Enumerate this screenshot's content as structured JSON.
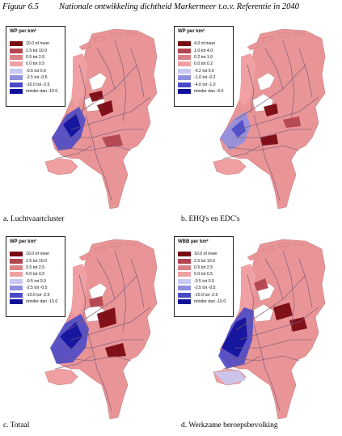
{
  "figure": {
    "number": "Figuur 6.5",
    "title": "Nationale ontwikkeling dichtheid Markermeer t.o.v. Referentie in 2040"
  },
  "colors": {
    "class1": "#7a0a12",
    "class2": "#b34550",
    "class3": "#d98185",
    "class4": "#f0a0a2",
    "class5": "#c8c8f2",
    "class6": "#8f8fe0",
    "class7": "#4a4ac8",
    "class8": "#0f0f9a",
    "land_base": "#e99597",
    "roads": "#7d5a78"
  },
  "panels": [
    {
      "caption": "a. Luchtvaartcluster",
      "legend_title": "WP per km²",
      "legend_items": [
        "10.0 of meer",
        "2.5 tot 10.0",
        "0.5 tot 2.5",
        "0.0 tot 0.5",
        "-0.5 tot 0.0",
        "-2.5 tot -0.5",
        "-10.0 tot -2.5",
        "minder dan -10.0"
      ]
    },
    {
      "caption": "b. EHQ's en EDC's",
      "legend_title": "WP per km²",
      "legend_items": [
        "4.0 of meer",
        "1.0 tot 4.0",
        "0.2 tot 1.0",
        "0.0 tot 0.2",
        "-0.2 tot 0.0",
        "-1.0 tot -0.2",
        "-4.0 tot -1.0",
        "minder dan -4.0"
      ]
    },
    {
      "caption": "c. Totaal",
      "legend_title": "WP per km²",
      "legend_items": [
        "10.0 of meer",
        "2.5 tot 10.0",
        "0.5 tot 2.5",
        "0.0 tot 0.5",
        "-0.5 tot 0.0",
        "-2.5 tot -0.5",
        "-10.0 tot -2.5",
        "minder dan -10.0"
      ]
    },
    {
      "caption": "d. Werkzame beroepsbevolking",
      "legend_title": "WBB per km²",
      "legend_items": [
        "10.0 of meer",
        "2.5 tot 10.0",
        "0.5 tot 2.5",
        "0.0 tot 0.5",
        "-0.5 tot 0.0",
        "-2.5 tot -0.5",
        "-10.0 tot -2.5",
        "minder dan -10.0"
      ]
    }
  ]
}
